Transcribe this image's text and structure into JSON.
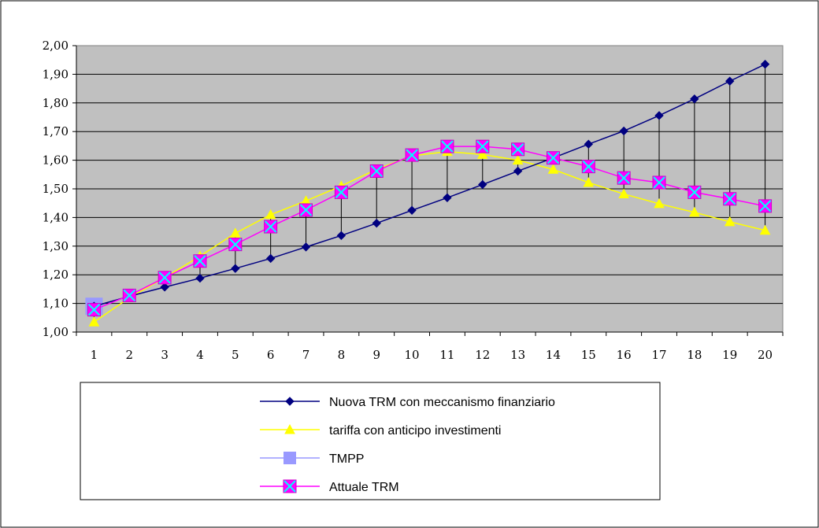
{
  "chart_data": {
    "type": "line",
    "title": "",
    "xlabel": "",
    "ylabel": "",
    "categories": [
      "1",
      "2",
      "3",
      "4",
      "5",
      "6",
      "7",
      "8",
      "9",
      "10",
      "11",
      "12",
      "13",
      "14",
      "15",
      "16",
      "17",
      "18",
      "19",
      "20"
    ],
    "y_tick_labels": [
      "1,00",
      "1,10",
      "1,20",
      "1,30",
      "1,40",
      "1,50",
      "1,60",
      "1,70",
      "1,80",
      "1,90",
      "2,00"
    ],
    "ylim": [
      1.0,
      2.0
    ],
    "grid": "horizontal",
    "plot_background": "#c0c0c0",
    "legend_position": "bottom",
    "drop_lines": true,
    "series": [
      {
        "name": "Nuova TRM con meccanismo finanziario",
        "color": "#000080",
        "marker": "diamond",
        "values": [
          1.09,
          1.125,
          1.157,
          1.188,
          1.222,
          1.257,
          1.297,
          1.337,
          1.38,
          1.425,
          1.469,
          1.515,
          1.562,
          1.608,
          1.656,
          1.702,
          1.756,
          1.814,
          1.876,
          1.935
        ]
      },
      {
        "name": "tariffa con anticipo investimenti",
        "color": "#ffff00",
        "marker": "triangle",
        "values": [
          1.035,
          1.12,
          1.19,
          1.265,
          1.345,
          1.41,
          1.458,
          1.51,
          1.568,
          1.615,
          1.63,
          1.62,
          1.6,
          1.568,
          1.522,
          1.482,
          1.448,
          1.418,
          1.385,
          1.355
        ]
      },
      {
        "name": "TMPP",
        "color": "#9999ff",
        "marker": "square",
        "values": [
          1.09,
          null,
          null,
          null,
          null,
          null,
          null,
          null,
          null,
          null,
          null,
          null,
          null,
          null,
          null,
          null,
          null,
          null,
          null,
          null
        ]
      },
      {
        "name": "Attuale TRM",
        "color": "#ff00ff",
        "marker": "square-x",
        "values": [
          1.078,
          1.128,
          1.19,
          1.248,
          1.306,
          1.368,
          1.426,
          1.488,
          1.562,
          1.618,
          1.648,
          1.648,
          1.638,
          1.608,
          1.578,
          1.538,
          1.522,
          1.488,
          1.465,
          1.44
        ]
      }
    ]
  }
}
